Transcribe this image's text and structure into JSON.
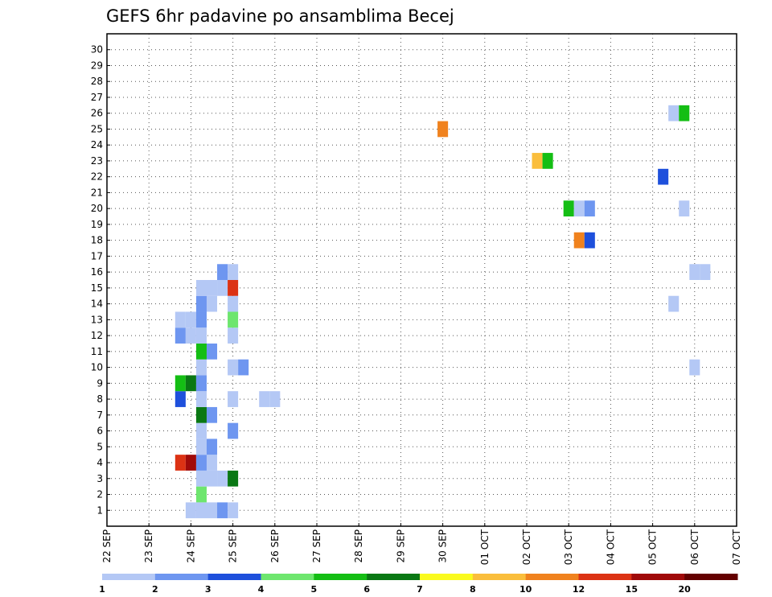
{
  "chart_data": {
    "type": "heatmap",
    "title": "GEFS 6hr padavine po ansamblima Becej",
    "x_ticks": [
      "22 SEP",
      "23 SEP",
      "24 SEP",
      "25 SEP",
      "26 SEP",
      "27 SEP",
      "28 SEP",
      "29 SEP",
      "30 SEP",
      "01 OCT",
      "02 OCT",
      "03 OCT",
      "04 OCT",
      "05 OCT",
      "06 OCT",
      "07 OCT"
    ],
    "y_ticks": [
      "1",
      "2",
      "3",
      "4",
      "5",
      "6",
      "7",
      "8",
      "9",
      "10",
      "11",
      "12",
      "13",
      "14",
      "15",
      "16",
      "17",
      "18",
      "19",
      "20",
      "21",
      "22",
      "23",
      "24",
      "25",
      "26",
      "27",
      "28",
      "29",
      "30"
    ],
    "grid": true,
    "colorbar": {
      "boundaries": [
        "1",
        "2",
        "3",
        "4",
        "5",
        "6",
        "7",
        "8",
        "10",
        "12",
        "15",
        "20"
      ],
      "colors": [
        "#b4c8f5",
        "#6e96f0",
        "#1e50dc",
        "#6ee66e",
        "#14be14",
        "#0a7814",
        "#fafa1e",
        "#fabe3c",
        "#f0821e",
        "#dc3214",
        "#a00a0a",
        "#640000"
      ]
    },
    "cells": [
      {
        "time": "24 SEP 00Z",
        "member": 1,
        "level": 1
      },
      {
        "time": "24 SEP 06Z",
        "member": 1,
        "level": 1
      },
      {
        "time": "24 SEP 12Z",
        "member": 1,
        "level": 1
      },
      {
        "time": "24 SEP 18Z",
        "member": 1,
        "level": 2
      },
      {
        "time": "25 SEP 00Z",
        "member": 1,
        "level": 1
      },
      {
        "time": "24 SEP 06Z",
        "member": 2,
        "level": 4
      },
      {
        "time": "24 SEP 06Z",
        "member": 3,
        "level": 1
      },
      {
        "time": "24 SEP 12Z",
        "member": 3,
        "level": 1
      },
      {
        "time": "24 SEP 18Z",
        "member": 3,
        "level": 1
      },
      {
        "time": "25 SEP 00Z",
        "member": 3,
        "level": 6
      },
      {
        "time": "23 SEP 18Z",
        "member": 4,
        "level": 10
      },
      {
        "time": "24 SEP 00Z",
        "member": 4,
        "level": 11
      },
      {
        "time": "24 SEP 06Z",
        "member": 4,
        "level": 2
      },
      {
        "time": "24 SEP 12Z",
        "member": 4,
        "level": 1
      },
      {
        "time": "24 SEP 06Z",
        "member": 5,
        "level": 1
      },
      {
        "time": "24 SEP 12Z",
        "member": 5,
        "level": 2
      },
      {
        "time": "24 SEP 06Z",
        "member": 6,
        "level": 1
      },
      {
        "time": "25 SEP 00Z",
        "member": 6,
        "level": 2
      },
      {
        "time": "24 SEP 06Z",
        "member": 7,
        "level": 6
      },
      {
        "time": "24 SEP 12Z",
        "member": 7,
        "level": 2
      },
      {
        "time": "23 SEP 18Z",
        "member": 8,
        "level": 3
      },
      {
        "time": "24 SEP 06Z",
        "member": 8,
        "level": 1
      },
      {
        "time": "25 SEP 00Z",
        "member": 8,
        "level": 1
      },
      {
        "time": "25 SEP 18Z",
        "member": 8,
        "level": 1
      },
      {
        "time": "26 SEP 00Z",
        "member": 8,
        "level": 1
      },
      {
        "time": "23 SEP 18Z",
        "member": 9,
        "level": 5
      },
      {
        "time": "24 SEP 00Z",
        "member": 9,
        "level": 6
      },
      {
        "time": "24 SEP 06Z",
        "member": 9,
        "level": 2
      },
      {
        "time": "24 SEP 06Z",
        "member": 10,
        "level": 1
      },
      {
        "time": "25 SEP 00Z",
        "member": 10,
        "level": 1
      },
      {
        "time": "25 SEP 06Z",
        "member": 10,
        "level": 2
      },
      {
        "time": "06 OCT 00Z",
        "member": 10,
        "level": 1
      },
      {
        "time": "24 SEP 06Z",
        "member": 11,
        "level": 5
      },
      {
        "time": "24 SEP 12Z",
        "member": 11,
        "level": 2
      },
      {
        "time": "23 SEP 18Z",
        "member": 12,
        "level": 2
      },
      {
        "time": "24 SEP 00Z",
        "member": 12,
        "level": 1
      },
      {
        "time": "24 SEP 06Z",
        "member": 12,
        "level": 1
      },
      {
        "time": "25 SEP 00Z",
        "member": 12,
        "level": 1
      },
      {
        "time": "23 SEP 18Z",
        "member": 13,
        "level": 1
      },
      {
        "time": "24 SEP 00Z",
        "member": 13,
        "level": 1
      },
      {
        "time": "24 SEP 06Z",
        "member": 13,
        "level": 2
      },
      {
        "time": "25 SEP 00Z",
        "member": 13,
        "level": 4
      },
      {
        "time": "24 SEP 06Z",
        "member": 14,
        "level": 2
      },
      {
        "time": "24 SEP 12Z",
        "member": 14,
        "level": 1
      },
      {
        "time": "25 SEP 00Z",
        "member": 14,
        "level": 1
      },
      {
        "time": "05 OCT 12Z",
        "member": 14,
        "level": 1
      },
      {
        "time": "24 SEP 06Z",
        "member": 15,
        "level": 1
      },
      {
        "time": "24 SEP 12Z",
        "member": 15,
        "level": 1
      },
      {
        "time": "24 SEP 18Z",
        "member": 15,
        "level": 1
      },
      {
        "time": "25 SEP 00Z",
        "member": 15,
        "level": 10
      },
      {
        "time": "24 SEP 18Z",
        "member": 16,
        "level": 2
      },
      {
        "time": "25 SEP 00Z",
        "member": 16,
        "level": 1
      },
      {
        "time": "06 OCT 00Z",
        "member": 16,
        "level": 1
      },
      {
        "time": "06 OCT 06Z",
        "member": 16,
        "level": 1
      },
      {
        "time": "30 SEP 00Z",
        "member": 25,
        "level": 9
      },
      {
        "time": "05 OCT 12Z",
        "member": 26,
        "level": 1
      },
      {
        "time": "05 OCT 18Z",
        "member": 26,
        "level": 5
      },
      {
        "time": "05 OCT 18Z",
        "member": 20,
        "level": 1
      },
      {
        "time": "02 OCT 06Z",
        "member": 23,
        "level": 8
      },
      {
        "time": "02 OCT 12Z",
        "member": 23,
        "level": 5
      },
      {
        "time": "03 OCT 00Z",
        "member": 20,
        "level": 5
      },
      {
        "time": "03 OCT 06Z",
        "member": 20,
        "level": 1
      },
      {
        "time": "03 OCT 12Z",
        "member": 20,
        "level": 2
      },
      {
        "time": "03 OCT 06Z",
        "member": 18,
        "level": 9
      },
      {
        "time": "03 OCT 12Z",
        "member": 18,
        "level": 3
      },
      {
        "time": "05 OCT 06Z",
        "member": 22,
        "level": 3
      }
    ]
  }
}
